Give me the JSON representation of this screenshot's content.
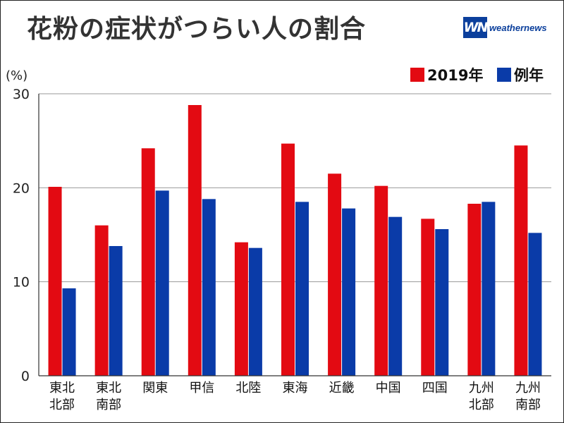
{
  "title": "花粉の症状がつらい人の割合",
  "logo": {
    "mark": "WN",
    "text": "weathernews"
  },
  "colors": {
    "series_2019": "#e30a12",
    "series_normal": "#0a3ba8"
  },
  "chart_data": {
    "type": "bar",
    "title": "花粉の症状がつらい人の割合",
    "ylabel": "(%)",
    "xlabel": "",
    "ylim": [
      0,
      30
    ],
    "yticks": [
      0,
      10,
      20,
      30
    ],
    "grid": true,
    "legend_position": "top-right",
    "categories": [
      [
        "東北",
        "北部"
      ],
      [
        "東北",
        "南部"
      ],
      [
        "関東"
      ],
      [
        "甲信"
      ],
      [
        "北陸"
      ],
      [
        "東海"
      ],
      [
        "近畿"
      ],
      [
        "中国"
      ],
      [
        "四国"
      ],
      [
        "九州",
        "北部"
      ],
      [
        "九州",
        "南部"
      ]
    ],
    "series": [
      {
        "name": "2019年",
        "color": "#e30a12",
        "values": [
          20.1,
          16.0,
          24.2,
          28.8,
          14.2,
          24.7,
          21.5,
          20.2,
          16.7,
          18.3,
          24.5
        ]
      },
      {
        "name": "例年",
        "color": "#0a3ba8",
        "values": [
          9.3,
          13.8,
          19.7,
          18.8,
          13.6,
          18.5,
          17.8,
          16.9,
          15.6,
          18.5,
          15.2
        ]
      }
    ]
  }
}
